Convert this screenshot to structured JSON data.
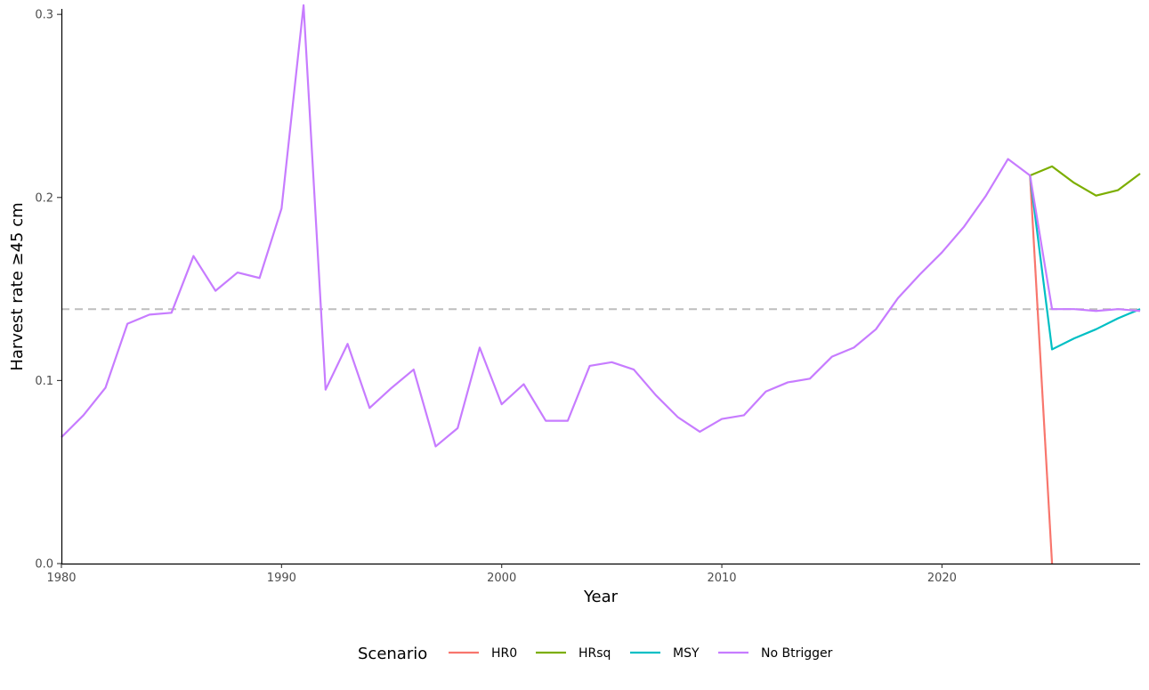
{
  "chart_data": {
    "type": "line",
    "xlabel": "Year",
    "ylabel": "Harvest rate ≥45 cm",
    "xlim": [
      1980,
      2029
    ],
    "ylim": [
      0,
      0.303
    ],
    "xticks": [
      1980,
      1990,
      2000,
      2010,
      2020
    ],
    "xtick_labels": [
      "1980",
      "1990",
      "2000",
      "2010",
      "2020"
    ],
    "yticks": [
      0,
      0.1,
      0.2,
      0.3
    ],
    "ytick_labels": [
      "0.0",
      "0.1",
      "0.2",
      "0.3"
    ],
    "grid": false,
    "reference_line": {
      "y": 0.139,
      "style": "dashed",
      "color": "#bebebe"
    },
    "legend": {
      "title": "Scenario",
      "position": "bottom"
    },
    "series": [
      {
        "name": "HR0",
        "color": "#F8766D",
        "x": [
          2024,
          2025
        ],
        "y": [
          0.212,
          0.0
        ]
      },
      {
        "name": "HRsq",
        "color": "#7CAE00",
        "x": [
          2024,
          2025,
          2026,
          2027,
          2028,
          2029
        ],
        "y": [
          0.212,
          0.217,
          0.208,
          0.201,
          0.204,
          0.213
        ]
      },
      {
        "name": "MSY",
        "color": "#00BFC4",
        "x": [
          2024,
          2025,
          2026,
          2027,
          2028,
          2029
        ],
        "y": [
          0.212,
          0.117,
          0.123,
          0.128,
          0.134,
          0.139
        ]
      },
      {
        "name": "No Btrigger",
        "color": "#C77CFF",
        "x": [
          1980,
          1981,
          1982,
          1983,
          1984,
          1985,
          1986,
          1987,
          1988,
          1989,
          1990,
          1991,
          1992,
          1993,
          1994,
          1995,
          1996,
          1997,
          1998,
          1999,
          2000,
          2001,
          2002,
          2003,
          2004,
          2005,
          2006,
          2007,
          2008,
          2009,
          2010,
          2011,
          2012,
          2013,
          2014,
          2015,
          2016,
          2017,
          2018,
          2019,
          2020,
          2021,
          2022,
          2023,
          2024,
          2025,
          2026,
          2027,
          2028,
          2029
        ],
        "y": [
          0.069,
          0.081,
          0.096,
          0.131,
          0.136,
          0.137,
          0.168,
          0.149,
          0.159,
          0.156,
          0.194,
          0.305,
          0.095,
          0.12,
          0.085,
          0.096,
          0.106,
          0.064,
          0.074,
          0.118,
          0.087,
          0.098,
          0.078,
          0.078,
          0.108,
          0.11,
          0.106,
          0.092,
          0.08,
          0.072,
          0.079,
          0.081,
          0.094,
          0.099,
          0.101,
          0.113,
          0.118,
          0.128,
          0.145,
          0.158,
          0.17,
          0.184,
          0.201,
          0.221,
          0.212,
          0.139,
          0.139,
          0.138,
          0.139,
          0.138
        ]
      }
    ]
  }
}
